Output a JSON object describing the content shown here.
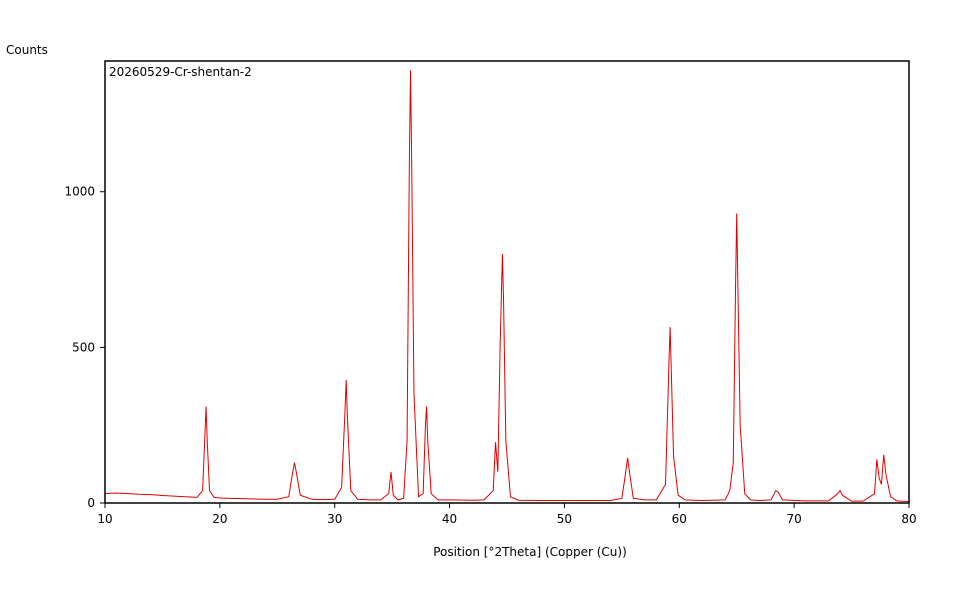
{
  "chart_data": {
    "type": "line",
    "y_label": "Counts",
    "x_label": "Position [°2Theta] (Copper (Cu))",
    "x": [
      10,
      11,
      12,
      13,
      14,
      15,
      16,
      17,
      18,
      18.5,
      18.7,
      18.8,
      18.9,
      19.1,
      19.5,
      20,
      21,
      22,
      23,
      24,
      25,
      26,
      26.3,
      26.5,
      26.7,
      27,
      28,
      29,
      30,
      30.6,
      30.9,
      31,
      31.1,
      31.4,
      32,
      33,
      34,
      34.7,
      34.9,
      35.1,
      35.5,
      36,
      36.3,
      36.5,
      36.6,
      36.7,
      36.9,
      37.3,
      37.7,
      37.9,
      38,
      38.1,
      38.4,
      39,
      40,
      42,
      43,
      43.8,
      44,
      44.2,
      44.4,
      44.6,
      44.7,
      44.9,
      45.3,
      46,
      48,
      50,
      52,
      54,
      55,
      55.3,
      55.5,
      55.7,
      56,
      57,
      58,
      58.8,
      59.1,
      59.2,
      59.3,
      59.5,
      59.9,
      60.5,
      62,
      64,
      64.4,
      64.7,
      64.9,
      65,
      65.1,
      65.3,
      65.7,
      66.2,
      67,
      68,
      68.4,
      68.6,
      69,
      71,
      73,
      73.8,
      74,
      74.2,
      75,
      76,
      77,
      77.2,
      77.4,
      77.6,
      77.8,
      78,
      78.4,
      79,
      80
    ],
    "series": [
      {
        "name": "20260529-Cr-shentan-2",
        "color": "#e00000",
        "values": [
          30,
          32,
          30,
          28,
          27,
          24,
          22,
          20,
          18,
          40,
          220,
          310,
          200,
          40,
          18,
          16,
          15,
          14,
          13,
          12,
          12,
          20,
          90,
          130,
          90,
          25,
          12,
          11,
          12,
          50,
          300,
          395,
          280,
          40,
          12,
          10,
          10,
          30,
          100,
          25,
          10,
          15,
          200,
          1100,
          1390,
          1100,
          350,
          20,
          30,
          250,
          310,
          200,
          30,
          10,
          10,
          9,
          10,
          40,
          195,
          100,
          500,
          800,
          650,
          200,
          20,
          9,
          8,
          8,
          8,
          8,
          15,
          90,
          145,
          90,
          15,
          10,
          10,
          60,
          450,
          565,
          430,
          150,
          25,
          10,
          8,
          10,
          40,
          130,
          700,
          930,
          700,
          250,
          30,
          10,
          8,
          10,
          40,
          35,
          10,
          7,
          7,
          30,
          40,
          25,
          6,
          6,
          30,
          140,
          80,
          60,
          155,
          90,
          20,
          6,
          5
        ]
      }
    ],
    "xlim": [
      10,
      80
    ],
    "xticks": [
      10,
      20,
      30,
      40,
      50,
      60,
      70,
      80
    ],
    "ylim": [
      0,
      1420
    ],
    "yticks": [
      0,
      500,
      1000
    ]
  }
}
